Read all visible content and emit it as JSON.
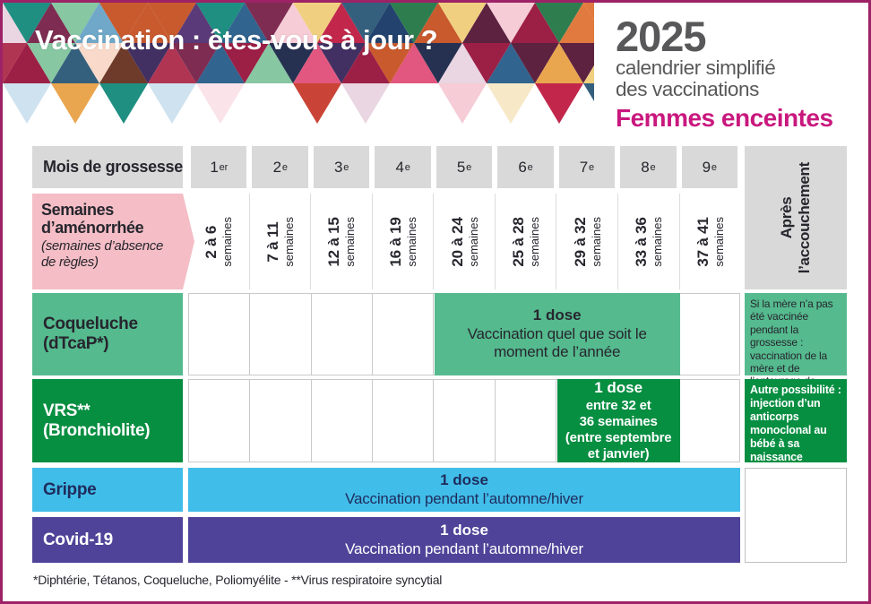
{
  "header": {
    "title": "Vaccination : êtes-vous à jour ?",
    "year": "2025",
    "subtitle_line1": "calendrier simplifié",
    "subtitle_line2": "des vaccinations",
    "audience": "Femmes enceintes",
    "mosaic_palette": [
      "#c2274b",
      "#9c1f45",
      "#d94a3c",
      "#b03553",
      "#e2577f",
      "#ad2b68",
      "#7e2c52",
      "#5d2240",
      "#e07a3f",
      "#c85a2e",
      "#eaa64e",
      "#f0d080",
      "#1f8f82",
      "#46b5a5",
      "#0d6158",
      "#23436e",
      "#31648f",
      "#6fa8c9",
      "#263152",
      "#5a3a78",
      "#413061",
      "#2e7d4f",
      "#87c7a2",
      "#6e3b2a",
      "#35607d",
      "#c94436"
    ],
    "mosaic_pale": [
      "#f6ccd6",
      "#f3b9c8",
      "#fbe3ea",
      "#f7e9c8",
      "#cfe8e2",
      "#cfe2ef",
      "#ead5e2",
      "#f9d9c9"
    ]
  },
  "table": {
    "months_header_label": "Mois de grossesse",
    "weeks_header_label": "Semaines d’aménorrhée",
    "weeks_header_sublabel": "(semaines d’absence de règles)",
    "after_birth_line1": "Après",
    "after_birth_line2": "l’accouchement",
    "months": [
      {
        "num": "1",
        "sup": "er"
      },
      {
        "num": "2",
        "sup": "e"
      },
      {
        "num": "3",
        "sup": "e"
      },
      {
        "num": "4",
        "sup": "e"
      },
      {
        "num": "5",
        "sup": "e"
      },
      {
        "num": "6",
        "sup": "e"
      },
      {
        "num": "7",
        "sup": "e"
      },
      {
        "num": "8",
        "sup": "e"
      },
      {
        "num": "9",
        "sup": "e"
      }
    ],
    "weeks": [
      "2 à 6",
      "7 à 11",
      "12 à 15",
      "16 à 19",
      "20 à 24",
      "25 à 28",
      "29 à 32",
      "33 à 36",
      "37 à 41"
    ],
    "weeks_unit": "semaines",
    "rows": [
      {
        "vaccine": "Coqueluche",
        "vaccine_sub": "(dTcaP*)",
        "dose_title": "1 dose",
        "dose_text": "Vaccination quel que soit le\nmoment de l’année",
        "after_note": "Si la mère n’a pas été vaccinée pendant la grossesse : vaccination de la mère et de l’entourage de l’enfant"
      },
      {
        "vaccine": "VRS**",
        "vaccine_sub": "(Bronchiolite)",
        "dose_title": "1 dose",
        "dose_text": "entre 32 et\n36 semaines\n(entre septembre\net janvier)",
        "after_note": "Autre possibilité : injection d’un anticorps monoclonal au bébé à sa naissance"
      },
      {
        "vaccine": "Grippe",
        "dose_title": "1 dose",
        "dose_text": "Vaccination pendant l’automne/hiver"
      },
      {
        "vaccine": "Covid-19",
        "dose_title": "1 dose",
        "dose_text": "Vaccination pendant l’automne/hiver"
      }
    ]
  },
  "footnote": "*Diphtérie, Tétanos, Coqueluche, Poliomyélite  -  **Virus respiratoire syncytial",
  "colors": {
    "page_border": "#9d2266",
    "header_gray": "#d9d9d9",
    "weeks_pink": "#f5bdc5",
    "pertussis_green": "#55ba8e",
    "vrs_green": "#068e41",
    "flu_blue": "#41bde9",
    "covid_purple": "#4f4399",
    "accent_magenta": "#c9187e",
    "title_gray": "#58585a",
    "dark_text": "#26262e",
    "navy_text": "#1e2c5c",
    "grid_line": "#c9c9c9"
  }
}
